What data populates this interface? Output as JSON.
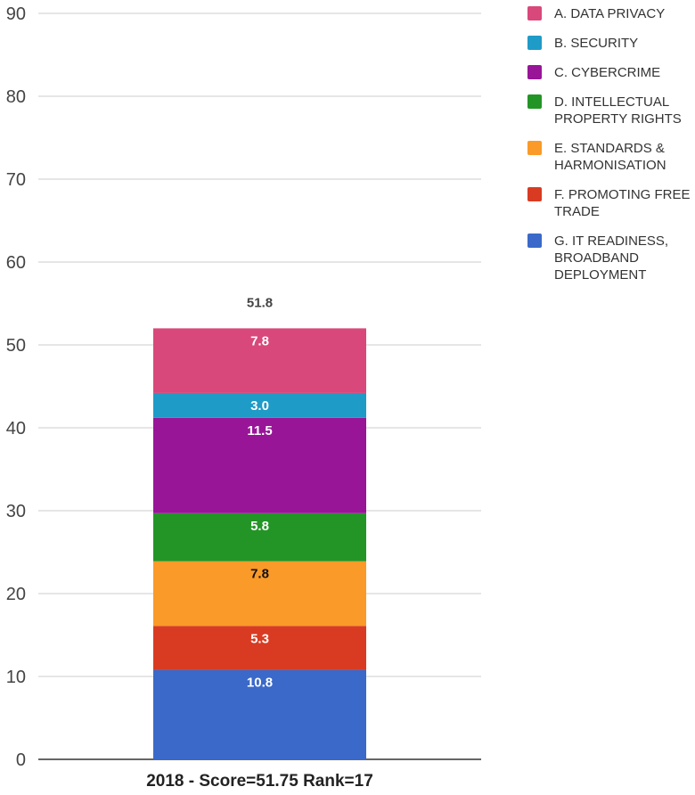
{
  "chart_data": {
    "type": "bar",
    "stacked": true,
    "title": "",
    "xlabel": "",
    "ylabel": "",
    "categories": [
      "2018 - Score=51.75 Rank=17"
    ],
    "ylim": [
      0,
      90
    ],
    "yticks": [
      0,
      10,
      20,
      30,
      40,
      50,
      60,
      70,
      80,
      90
    ],
    "grid": true,
    "legend_position": "right",
    "total_label": "51.8",
    "series": [
      {
        "name": "G. IT READINESS, BROADBAND DEPLOYMENT",
        "values": [
          10.8
        ],
        "label": "10.8",
        "color": "#3a69c9",
        "label_color": "#ffffff"
      },
      {
        "name": "F. PROMOTING FREE TRADE",
        "values": [
          5.3
        ],
        "label": "5.3",
        "color": "#d93b22",
        "label_color": "#ffffff"
      },
      {
        "name": "E. STANDARDS & HARMONISATION",
        "values": [
          7.8
        ],
        "label": "7.8",
        "color": "#fa9a28",
        "label_color": "#111111"
      },
      {
        "name": "D. INTELLECTUAL PROPERTY RIGHTS",
        "values": [
          5.8
        ],
        "label": "5.8",
        "color": "#239526",
        "label_color": "#ffffff"
      },
      {
        "name": "C. CYBERCRIME",
        "values": [
          11.5
        ],
        "label": "11.5",
        "color": "#981598",
        "label_color": "#ffffff"
      },
      {
        "name": "B. SECURITY",
        "values": [
          3.0
        ],
        "label": "3.0",
        "color": "#1f9bc7",
        "label_color": "#ffffff"
      },
      {
        "name": "A. DATA PRIVACY",
        "values": [
          7.8
        ],
        "label": "7.8",
        "color": "#d9487a",
        "label_color": "#ffffff"
      }
    ]
  }
}
